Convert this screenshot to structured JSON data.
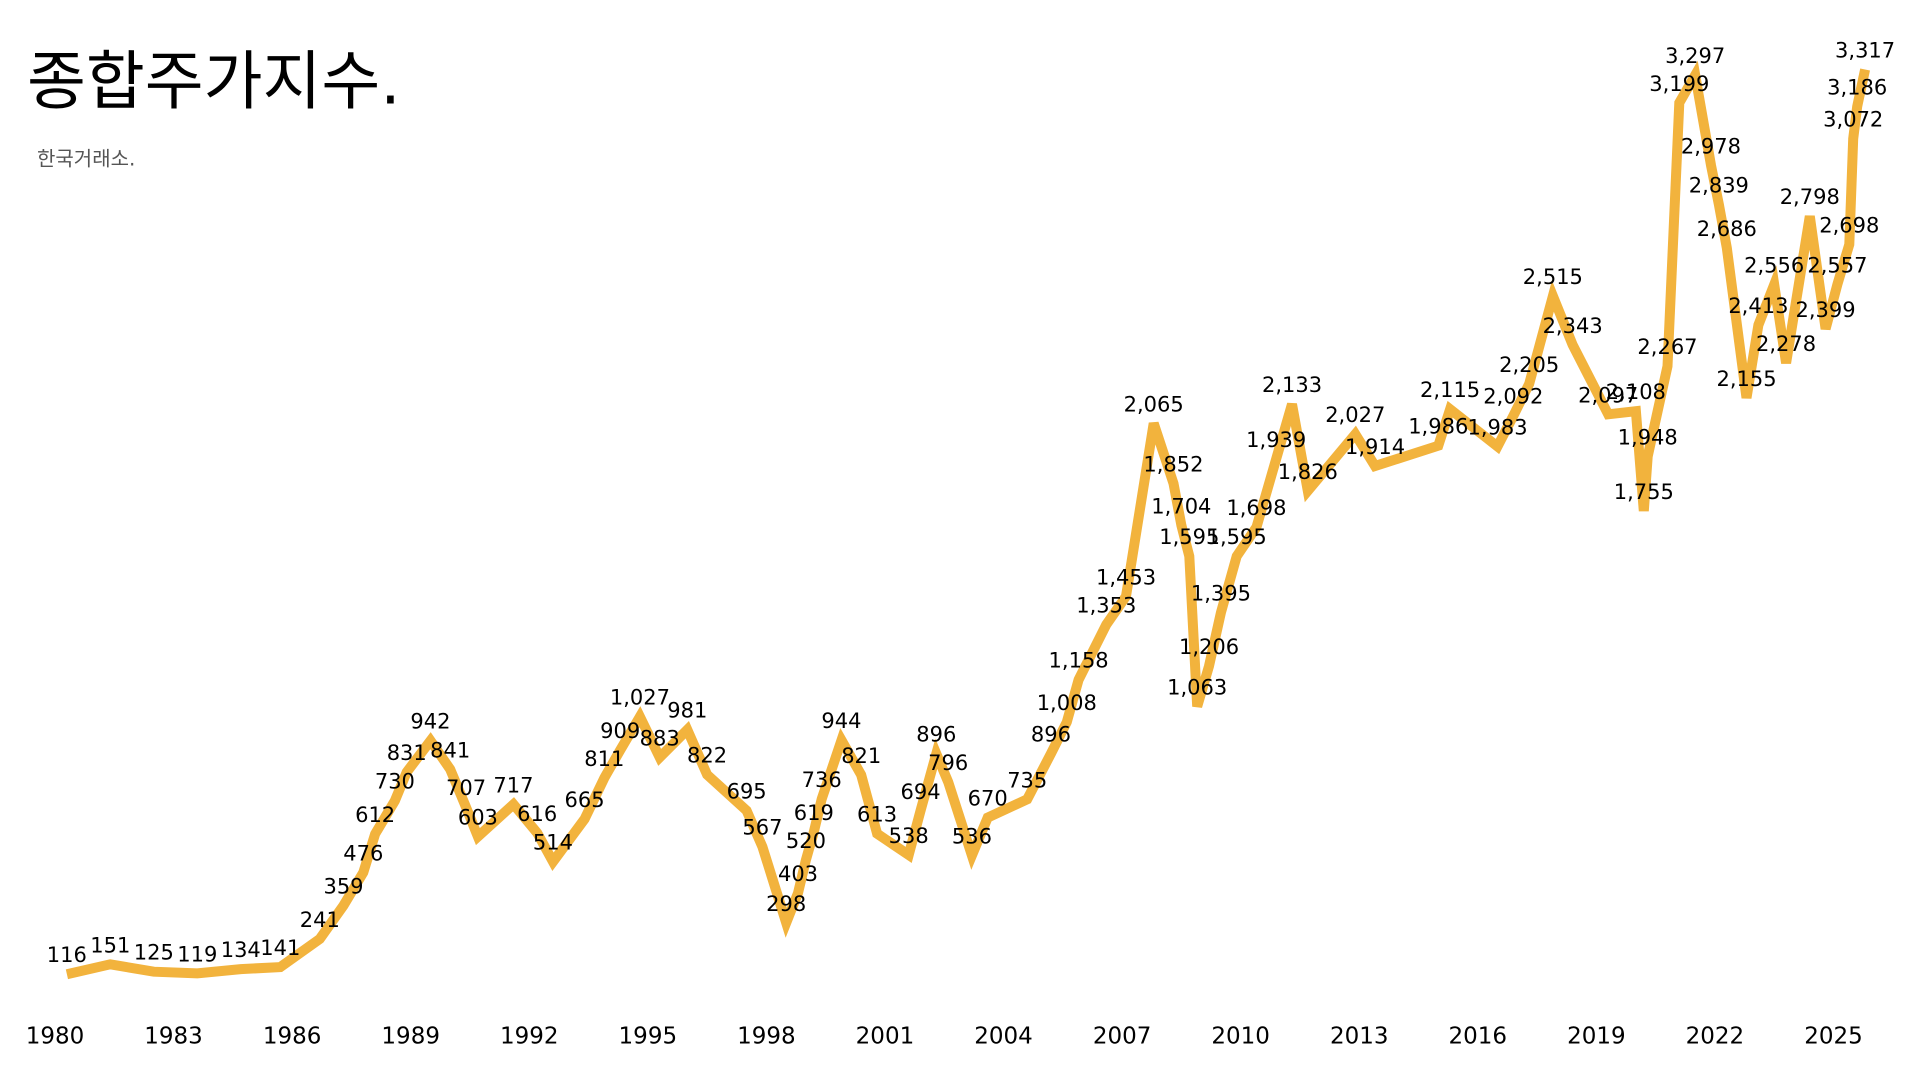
{
  "chart_data": {
    "type": "line",
    "title": "종합주가지수.",
    "subtitle": "한국거래소.",
    "color": "#f2b33d",
    "x": [
      1980.3,
      1981.4,
      1982.5,
      1983.6,
      1984.7,
      1985.7,
      1986.7,
      1987.3,
      1987.8,
      1988.1,
      1988.6,
      1988.9,
      1989.5,
      1990.0,
      1990.4,
      1990.7,
      1991.6,
      1992.2,
      1992.6,
      1993.4,
      1993.9,
      1994.3,
      1994.8,
      1995.3,
      1996.0,
      1996.5,
      1997.5,
      1997.9,
      1998.5,
      1998.8,
      1999.0,
      1999.2,
      1999.4,
      1999.9,
      2000.4,
      2000.8,
      2001.6,
      2001.9,
      2002.3,
      2002.6,
      2003.2,
      2003.6,
      2004.6,
      2005.2,
      2005.6,
      2005.9,
      2006.6,
      2007.1,
      2007.8,
      2008.3,
      2008.5,
      2008.7,
      2008.9,
      2009.2,
      2009.5,
      2009.9,
      2010.4,
      2010.9,
      2011.3,
      2011.7,
      2012.9,
      2013.4,
      2015.0,
      2015.3,
      2016.5,
      2016.9,
      2017.3,
      2017.9,
      2018.4,
      2019.3,
      2020.0,
      2020.2,
      2020.3,
      2020.8,
      2021.1,
      2021.5,
      2021.9,
      2022.1,
      2022.3,
      2022.8,
      2023.1,
      2023.5,
      2023.8,
      2024.4,
      2024.8,
      2025.1,
      2025.4,
      2025.5,
      2025.6,
      2025.8
    ],
    "values": [
      116,
      151,
      125,
      119,
      134,
      141,
      241,
      359,
      476,
      612,
      730,
      831,
      942,
      841,
      707,
      603,
      717,
      616,
      514,
      665,
      811,
      909,
      1027,
      883,
      981,
      822,
      695,
      567,
      298,
      403,
      520,
      619,
      736,
      944,
      821,
      613,
      538,
      694,
      896,
      796,
      536,
      670,
      735,
      896,
      1008,
      1158,
      1353,
      1453,
      2065,
      1852,
      1704,
      1595,
      1063,
      1206,
      1395,
      1595,
      1698,
      1939,
      2133,
      1826,
      2027,
      1914,
      1986,
      2115,
      1983,
      2092,
      2205,
      2515,
      2343,
      2097,
      2108,
      1755,
      1948,
      2267,
      3199,
      3297,
      2978,
      2839,
      2686,
      2155,
      2413,
      2556,
      2278,
      2798,
      2399,
      2557,
      2698,
      3072,
      3186,
      3317
    ],
    "value_labels": [
      "116",
      "151",
      "125",
      "119",
      "134",
      "141",
      "241",
      "359",
      "476",
      "612",
      "730",
      "831",
      "942",
      "841",
      "707",
      "603",
      "717",
      "616",
      "514",
      "665",
      "811",
      "909",
      "1,027",
      "883",
      "981",
      "822",
      "695",
      "567",
      "298",
      "403",
      "520",
      "619",
      "736",
      "944",
      "821",
      "613",
      "538",
      "694",
      "896",
      "796",
      "536",
      "670",
      "735",
      "896",
      "1,008",
      "1,158",
      "1,353",
      "1,453",
      "2,065",
      "1,852",
      "1,704",
      "1,595",
      "1,063",
      "1,206",
      "1,395",
      "1,595",
      "1,698",
      "1,939",
      "2,133",
      "1,826",
      "2,027",
      "1,914",
      "1,986",
      "2,115",
      "1,983",
      "2,092",
      "2,205",
      "2,515",
      "2,343",
      "2,097",
      "2,108",
      "1,755",
      "1,948",
      "2,267",
      "3,199",
      "3,297",
      "2,978",
      "2,839",
      "2,686",
      "2,155",
      "2,413",
      "2,556",
      "2,278",
      "2,798",
      "2,399",
      "2,557",
      "2,698",
      "3,072",
      "3,186",
      "3,317"
    ],
    "xlim": [
      1980,
      2026
    ],
    "xticks": [
      1980,
      1983,
      1986,
      1989,
      1992,
      1995,
      1998,
      2001,
      2004,
      2007,
      2010,
      2013,
      2016,
      2019,
      2022,
      2025
    ],
    "ylim": [
      0,
      3400
    ]
  }
}
